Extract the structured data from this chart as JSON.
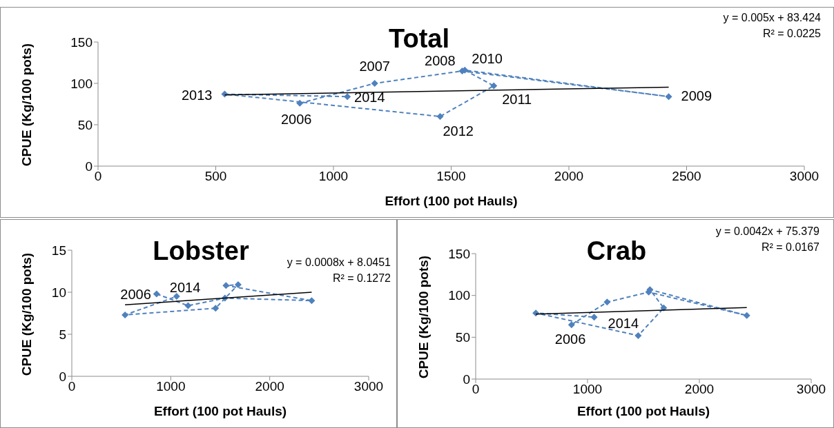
{
  "chart_data": [
    {
      "type": "scatter",
      "title": "Total",
      "xlabel": "Effort (100 pot Hauls)",
      "ylabel": "CPUE (Kg/100 pots)",
      "xlim": [
        0,
        3000
      ],
      "xticks": [
        0,
        500,
        1000,
        1500,
        2000,
        2500,
        3000
      ],
      "ylim": [
        0,
        150
      ],
      "yticks": [
        0,
        50,
        100,
        150
      ],
      "grid": false,
      "legend": false,
      "series": [
        {
          "type": "line",
          "color": "#4f81bd",
          "marker": "diamond",
          "line_style": "dashed",
          "x": [
            857,
            1175,
            1547,
            2424,
            1558,
            1681,
            1453,
            538,
            1059
          ],
          "values": [
            76,
            100,
            115,
            84,
            116,
            97,
            60,
            87,
            84
          ]
        },
        {
          "type": "line",
          "color": "#000000",
          "marker": "none",
          "line_style": "solid",
          "x": [
            538,
            2424
          ],
          "values": [
            86.1,
            95.5
          ]
        }
      ],
      "annotations": [
        "y = 0.005x + 83.424",
        "R² = 0.0225",
        {
          "text": "2006",
          "x": 857,
          "y": 76
        },
        {
          "text": "2007",
          "x": 1175,
          "y": 100
        },
        {
          "text": "2008",
          "x": 1547,
          "y": 115
        },
        {
          "text": "2009",
          "x": 2424,
          "y": 84
        },
        {
          "text": "2010",
          "x": 1558,
          "y": 116
        },
        {
          "text": "2011",
          "x": 1681,
          "y": 97
        },
        {
          "text": "2012",
          "x": 1453,
          "y": 60
        },
        {
          "text": "2013",
          "x": 538,
          "y": 87
        },
        {
          "text": "2014",
          "x": 1059,
          "y": 84
        }
      ]
    },
    {
      "type": "scatter",
      "title": "Lobster",
      "xlabel": "Effort (100 pot Hauls)",
      "ylabel": "CPUE (Kg/100 pots)",
      "xlim": [
        0,
        3000
      ],
      "xticks": [
        0,
        1000,
        2000,
        3000
      ],
      "ylim": [
        0,
        15
      ],
      "yticks": [
        0,
        5,
        10,
        15
      ],
      "grid": false,
      "legend": false,
      "series": [
        {
          "type": "line",
          "color": "#4f81bd",
          "marker": "diamond",
          "line_style": "dashed",
          "x": [
            857,
            1175,
            1547,
            2424,
            1558,
            1681,
            1453,
            538,
            1059
          ],
          "values": [
            9.8,
            8.4,
            9.3,
            9.0,
            10.8,
            10.9,
            8.1,
            7.3,
            9.5
          ]
        },
        {
          "type": "line",
          "color": "#000000",
          "marker": "none",
          "line_style": "solid",
          "x": [
            538,
            2424
          ],
          "values": [
            8.5,
            10.0
          ]
        }
      ],
      "annotations": [
        "y = 0.0008x + 8.0451",
        "R² = 0.1272",
        {
          "text": "2006",
          "x": 857,
          "y": 9.8
        },
        {
          "text": "2014",
          "x": 1059,
          "y": 9.5
        }
      ]
    },
    {
      "type": "scatter",
      "title": "Crab",
      "xlabel": "Effort (100 pot Hauls)",
      "ylabel": "CPUE (Kg/100 pots)",
      "xlim": [
        0,
        3000
      ],
      "xticks": [
        0,
        1000,
        2000,
        3000
      ],
      "ylim": [
        0,
        150
      ],
      "yticks": [
        0,
        50,
        100,
        150
      ],
      "grid": false,
      "legend": false,
      "series": [
        {
          "type": "line",
          "color": "#4f81bd",
          "marker": "diamond",
          "line_style": "dashed",
          "x": [
            857,
            1175,
            1547,
            2424,
            1558,
            1681,
            1453,
            538,
            1059
          ],
          "values": [
            65,
            92,
            104,
            76,
            107,
            85,
            52,
            79,
            74
          ]
        },
        {
          "type": "line",
          "color": "#000000",
          "marker": "none",
          "line_style": "solid",
          "x": [
            538,
            2424
          ],
          "values": [
            77.6,
            85.6
          ]
        }
      ],
      "annotations": [
        "y = 0.0042x + 75.379",
        "R² = 0.0167",
        {
          "text": "2006",
          "x": 857,
          "y": 65
        },
        {
          "text": "2014",
          "x": 1059,
          "y": 74
        }
      ]
    }
  ]
}
